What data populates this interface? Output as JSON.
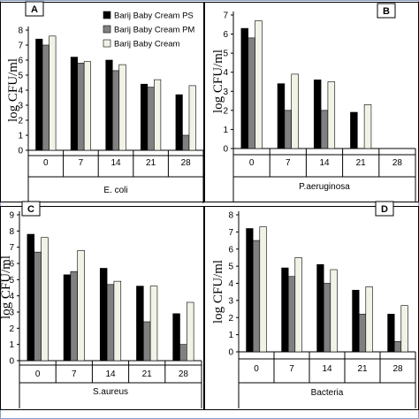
{
  "chart_data": [
    {
      "type": "bar",
      "panel_letter": "A",
      "categories": [
        "0",
        "7",
        "14",
        "21",
        "28"
      ],
      "series": [
        {
          "name": "Barij Baby Cream PS",
          "values": [
            7.4,
            6.2,
            6.0,
            4.4,
            3.7
          ]
        },
        {
          "name": "Barij Baby Cream PM",
          "values": [
            7.0,
            5.8,
            5.3,
            4.2,
            1.0
          ]
        },
        {
          "name": "Barij Baby Cream",
          "values": [
            7.6,
            5.9,
            5.7,
            4.7,
            4.3
          ]
        }
      ],
      "xlabel": "E. coli",
      "ylabel": "log CFU/ml",
      "ylim": [
        0,
        8
      ],
      "yticks": [
        "0",
        "1",
        "2",
        "3",
        "4",
        "5",
        "6",
        "7",
        "8"
      ],
      "legend_position": "top-right"
    },
    {
      "type": "bar",
      "panel_letter": "B",
      "categories": [
        "0",
        "7",
        "14",
        "21",
        "28"
      ],
      "series": [
        {
          "values": [
            6.3,
            3.4,
            3.6,
            1.9,
            null
          ]
        },
        {
          "values": [
            5.8,
            2.0,
            2.0,
            null,
            null
          ]
        },
        {
          "values": [
            6.7,
            3.9,
            3.5,
            2.3,
            null
          ]
        }
      ],
      "xlabel": "P.aeruginosa",
      "ylabel": "log CFU/ml",
      "ylim": [
        0,
        7
      ],
      "yticks": [
        "0",
        "1",
        "2",
        "3",
        "4",
        "5",
        "6",
        "7"
      ]
    },
    {
      "type": "bar",
      "panel_letter": "C",
      "categories": [
        "0",
        "7",
        "14",
        "21",
        "28"
      ],
      "series": [
        {
          "values": [
            7.8,
            5.3,
            5.7,
            4.6,
            2.9
          ]
        },
        {
          "values": [
            6.7,
            5.5,
            4.7,
            2.4,
            1.0
          ]
        },
        {
          "values": [
            7.6,
            6.8,
            4.9,
            4.6,
            3.6
          ]
        }
      ],
      "xlabel": "S.aureus",
      "ylabel": "log CFU/ml",
      "ylim": [
        0,
        9
      ],
      "yticks": [
        "0",
        "1",
        "2",
        "3",
        "4",
        "5",
        "6",
        "7",
        "8",
        "9"
      ]
    },
    {
      "type": "bar",
      "panel_letter": "D",
      "categories": [
        "0",
        "7",
        "14",
        "21",
        "28"
      ],
      "series": [
        {
          "values": [
            7.2,
            4.9,
            5.1,
            3.6,
            2.2
          ]
        },
        {
          "values": [
            6.5,
            4.4,
            4.0,
            2.2,
            0.6
          ]
        },
        {
          "values": [
            7.3,
            5.5,
            4.8,
            3.8,
            2.7
          ]
        }
      ],
      "xlabel": "Bacteria",
      "ylabel": "log CFU/ml",
      "ylim": [
        0,
        8
      ],
      "yticks": [
        "0",
        "1",
        "2",
        "3",
        "4",
        "5",
        "6",
        "7",
        "8"
      ]
    }
  ],
  "series_colors": [
    "#000000",
    "#808080",
    "#f2f2e6"
  ],
  "frame_color": "#8aa0c8",
  "panel_border_color": "#000000"
}
